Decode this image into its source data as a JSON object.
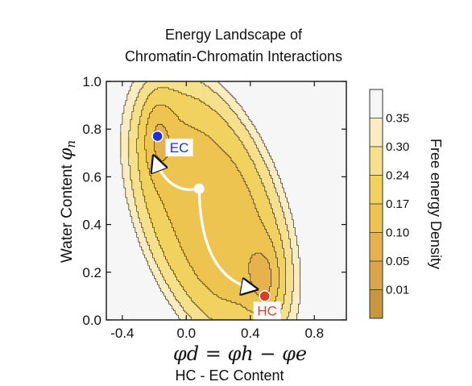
{
  "chart_data": {
    "type": "heatmap",
    "title_line1": "Energy Landscape of",
    "title_line2": "Chromatin-Chromatin Interactions",
    "ylabel_text": "Water Content",
    "ylabel_symbol": "φ",
    "ylabel_sub": "n",
    "xlabel_formula": "φd = φh − φe",
    "xlabel_subtitle": "HC - EC Content",
    "xlim": [
      -0.5,
      1.0
    ],
    "ylim": [
      0.0,
      1.0
    ],
    "x_ticks": [
      -0.4,
      0.0,
      0.4,
      0.8
    ],
    "x_tick_labels": [
      "-0.4",
      "0.0",
      "0.4",
      "0.8"
    ],
    "y_ticks": [
      0.0,
      0.2,
      0.4,
      0.6,
      0.8,
      1.0
    ],
    "y_tick_labels": [
      "0.0",
      "0.2",
      "0.4",
      "0.6",
      "0.8",
      "1.0"
    ],
    "colorbar": {
      "label": "Free energy Density",
      "levels": [
        0.01,
        0.05,
        0.1,
        0.17,
        0.24,
        0.3,
        0.35
      ],
      "tick_labels": [
        "0.01",
        "0.05",
        "0.10",
        "0.17",
        "0.24",
        "0.30",
        "0.35"
      ],
      "colors": [
        "#c9963c",
        "#dba64a",
        "#e6b24e",
        "#eec450",
        "#f2d25e",
        "#f6e08c",
        "#f9ecc0",
        "#f6f6f6"
      ]
    },
    "points": [
      {
        "label": "EC",
        "x": -0.18,
        "y": 0.77,
        "color": "#1a2fd6"
      },
      {
        "label": "HC",
        "x": 0.49,
        "y": 0.1,
        "color": "#e03a22"
      },
      {
        "label": "",
        "x": 0.08,
        "y": 0.55,
        "color": "#ffffff"
      }
    ],
    "paths": [
      {
        "from": [
          0.08,
          0.55
        ],
        "to": [
          -0.2,
          0.68
        ]
      },
      {
        "from": [
          0.08,
          0.55
        ],
        "to": [
          0.43,
          0.13
        ]
      }
    ]
  }
}
